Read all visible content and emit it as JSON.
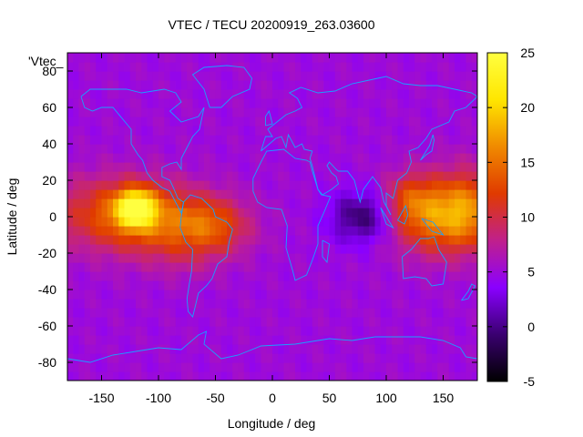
{
  "chart_data": {
    "type": "heatmap",
    "title": "VTEC / TECU 20200919_263.03600",
    "xlabel": "Longitude / deg",
    "ylabel": "Latitude / deg",
    "key_label": "'Vtec_",
    "xlim": [
      -180,
      180
    ],
    "ylim": [
      -90,
      90
    ],
    "xticks": [
      -150,
      -100,
      -50,
      0,
      50,
      100,
      150
    ],
    "yticks": [
      -80,
      -60,
      -40,
      -20,
      0,
      20,
      40,
      60,
      80
    ],
    "colorbar": {
      "range": [
        -5,
        25
      ],
      "ticks": [
        -5,
        0,
        5,
        10,
        15,
        20,
        25
      ],
      "palette": [
        "#000000",
        "#3a0070",
        "#8a00ff",
        "#c0208c",
        "#e03a00",
        "#f08a00",
        "#ffe600",
        "#ffff40"
      ]
    },
    "grid_resolution_deg": 5,
    "background_level": 5,
    "features": [
      {
        "lon": -120,
        "lat": 5,
        "value": 22,
        "sigma_lon": 12,
        "sigma_lat": 7
      },
      {
        "lon": -135,
        "lat": 2,
        "value": 14,
        "sigma_lon": 40,
        "sigma_lat": 14
      },
      {
        "lon": -80,
        "lat": -5,
        "value": 12,
        "sigma_lon": 35,
        "sigma_lat": 13
      },
      {
        "lon": -50,
        "lat": -5,
        "value": 10,
        "sigma_lon": 20,
        "sigma_lat": 10
      },
      {
        "lon": 145,
        "lat": 0,
        "value": 15,
        "sigma_lon": 30,
        "sigma_lat": 14
      },
      {
        "lon": 175,
        "lat": 5,
        "value": 13,
        "sigma_lon": 25,
        "sigma_lat": 15
      },
      {
        "lon": 120,
        "lat": 10,
        "value": 10,
        "sigma_lon": 15,
        "sigma_lat": 10
      },
      {
        "lon": -75,
        "lat": -25,
        "value": 6,
        "sigma_lon": 18,
        "sigma_lat": 8
      },
      {
        "lon": 80,
        "lat": 0,
        "value": -2,
        "sigma_lon": 20,
        "sigma_lat": 10
      }
    ],
    "coastlines": [
      [
        [
          -168,
          66
        ],
        [
          -160,
          70
        ],
        [
          -140,
          70
        ],
        [
          -128,
          70
        ],
        [
          -115,
          68
        ],
        [
          -95,
          70
        ],
        [
          -85,
          68
        ],
        [
          -80,
          63
        ],
        [
          -90,
          58
        ],
        [
          -80,
          52
        ],
        [
          -65,
          55
        ],
        [
          -60,
          60
        ],
        [
          -64,
          48
        ],
        [
          -70,
          44
        ],
        [
          -75,
          38
        ],
        [
          -80,
          32
        ],
        [
          -80,
          26
        ],
        [
          -84,
          30
        ],
        [
          -90,
          29
        ],
        [
          -97,
          27
        ],
        [
          -97,
          22
        ],
        [
          -90,
          20
        ],
        [
          -87,
          16
        ],
        [
          -83,
          10
        ],
        [
          -78,
          8
        ],
        [
          -80,
          2
        ],
        [
          -90,
          14
        ],
        [
          -97,
          16
        ],
        [
          -105,
          20
        ],
        [
          -110,
          24
        ],
        [
          -114,
          31
        ],
        [
          -118,
          34
        ],
        [
          -124,
          40
        ],
        [
          -124,
          48
        ],
        [
          -132,
          54
        ],
        [
          -140,
          60
        ],
        [
          -150,
          60
        ],
        [
          -158,
          58
        ],
        [
          -165,
          60
        ],
        [
          -168,
          66
        ]
      ],
      [
        [
          -78,
          8
        ],
        [
          -72,
          12
        ],
        [
          -62,
          10
        ],
        [
          -52,
          4
        ],
        [
          -50,
          0
        ],
        [
          -40,
          -3
        ],
        [
          -35,
          -7
        ],
        [
          -38,
          -14
        ],
        [
          -40,
          -22
        ],
        [
          -48,
          -26
        ],
        [
          -53,
          -34
        ],
        [
          -58,
          -38
        ],
        [
          -65,
          -42
        ],
        [
          -68,
          -50
        ],
        [
          -70,
          -55
        ],
        [
          -74,
          -52
        ],
        [
          -75,
          -45
        ],
        [
          -73,
          -37
        ],
        [
          -71,
          -30
        ],
        [
          -70,
          -18
        ],
        [
          -76,
          -14
        ],
        [
          -81,
          -6
        ],
        [
          -80,
          0
        ],
        [
          -78,
          8
        ]
      ],
      [
        [
          -55,
          60
        ],
        [
          -45,
          60
        ],
        [
          -35,
          66
        ],
        [
          -20,
          70
        ],
        [
          -18,
          76
        ],
        [
          -25,
          82
        ],
        [
          -40,
          83
        ],
        [
          -60,
          82
        ],
        [
          -70,
          78
        ],
        [
          -60,
          70
        ],
        [
          -55,
          60
        ]
      ],
      [
        [
          -10,
          36
        ],
        [
          -6,
          44
        ],
        [
          0,
          44
        ],
        [
          -4,
          48
        ],
        [
          2,
          51
        ],
        [
          8,
          54
        ],
        [
          12,
          56
        ],
        [
          20,
          58
        ],
        [
          26,
          60
        ],
        [
          22,
          65
        ],
        [
          15,
          68
        ],
        [
          25,
          71
        ],
        [
          40,
          68
        ],
        [
          55,
          69
        ],
        [
          70,
          73
        ],
        [
          85,
          75
        ],
        [
          100,
          77
        ],
        [
          115,
          73
        ],
        [
          130,
          72
        ],
        [
          145,
          72
        ],
        [
          160,
          70
        ],
        [
          175,
          68
        ],
        [
          180,
          66
        ],
        [
          170,
          60
        ],
        [
          160,
          58
        ],
        [
          155,
          52
        ],
        [
          140,
          48
        ],
        [
          135,
          43
        ],
        [
          128,
          38
        ],
        [
          120,
          36
        ],
        [
          122,
          30
        ],
        [
          118,
          24
        ],
        [
          110,
          20
        ],
        [
          106,
          10
        ],
        [
          100,
          13
        ],
        [
          100,
          6
        ],
        [
          104,
          1
        ],
        [
          98,
          8
        ],
        [
          95,
          16
        ],
        [
          88,
          22
        ],
        [
          80,
          15
        ],
        [
          77,
          8
        ],
        [
          72,
          20
        ],
        [
          66,
          25
        ],
        [
          58,
          25
        ],
        [
          56,
          26
        ],
        [
          50,
          30
        ],
        [
          48,
          28
        ],
        [
          52,
          24
        ],
        [
          56,
          22
        ],
        [
          58,
          18
        ],
        [
          52,
          15
        ],
        [
          44,
          12
        ],
        [
          40,
          15
        ],
        [
          35,
          28
        ],
        [
          33,
          32
        ],
        [
          35,
          36
        ],
        [
          28,
          37
        ],
        [
          26,
          40
        ],
        [
          20,
          38
        ],
        [
          14,
          45
        ],
        [
          12,
          38
        ],
        [
          8,
          44
        ],
        [
          3,
          43
        ],
        [
          -10,
          36
        ]
      ],
      [
        [
          -17,
          21
        ],
        [
          -10,
          30
        ],
        [
          -5,
          36
        ],
        [
          10,
          37
        ],
        [
          20,
          32
        ],
        [
          30,
          31
        ],
        [
          33,
          30
        ],
        [
          35,
          25
        ],
        [
          40,
          15
        ],
        [
          43,
          12
        ],
        [
          51,
          11
        ],
        [
          45,
          2
        ],
        [
          40,
          -5
        ],
        [
          40,
          -15
        ],
        [
          35,
          -24
        ],
        [
          30,
          -32
        ],
        [
          20,
          -35
        ],
        [
          18,
          -30
        ],
        [
          12,
          -17
        ],
        [
          13,
          -5
        ],
        [
          8,
          4
        ],
        [
          -5,
          5
        ],
        [
          -13,
          8
        ],
        [
          -17,
          14
        ],
        [
          -17,
          21
        ]
      ],
      [
        [
          44,
          -13
        ],
        [
          50,
          -15
        ],
        [
          48,
          -25
        ],
        [
          44,
          -22
        ],
        [
          44,
          -13
        ]
      ],
      [
        [
          114,
          -22
        ],
        [
          122,
          -18
        ],
        [
          130,
          -12
        ],
        [
          137,
          -12
        ],
        [
          142,
          -11
        ],
        [
          146,
          -18
        ],
        [
          153,
          -25
        ],
        [
          150,
          -37
        ],
        [
          140,
          -38
        ],
        [
          135,
          -34
        ],
        [
          125,
          -33
        ],
        [
          115,
          -34
        ],
        [
          114,
          -22
        ]
      ],
      [
        [
          95,
          5
        ],
        [
          100,
          0
        ],
        [
          106,
          -6
        ],
        [
          100,
          -4
        ],
        [
          95,
          5
        ]
      ],
      [
        [
          110,
          -2
        ],
        [
          117,
          6
        ],
        [
          119,
          1
        ],
        [
          116,
          -4
        ],
        [
          110,
          -2
        ]
      ],
      [
        [
          131,
          -1
        ],
        [
          141,
          -3
        ],
        [
          150,
          -10
        ],
        [
          140,
          -8
        ],
        [
          131,
          -1
        ]
      ],
      [
        [
          130,
          31
        ],
        [
          135,
          34
        ],
        [
          140,
          36
        ],
        [
          142,
          42
        ],
        [
          141,
          45
        ],
        [
          138,
          39
        ],
        [
          133,
          34
        ],
        [
          130,
          31
        ]
      ],
      [
        [
          -6,
          50
        ],
        [
          0,
          51
        ],
        [
          -2,
          56
        ],
        [
          -3,
          58
        ],
        [
          -6,
          55
        ],
        [
          -6,
          50
        ]
      ],
      [
        [
          -180,
          -78
        ],
        [
          -160,
          -80
        ],
        [
          -140,
          -76
        ],
        [
          -120,
          -74
        ],
        [
          -100,
          -72
        ],
        [
          -80,
          -73
        ],
        [
          -65,
          -65
        ],
        [
          -58,
          -63
        ],
        [
          -60,
          -70
        ],
        [
          -45,
          -78
        ],
        [
          -30,
          -76
        ],
        [
          -10,
          -71
        ],
        [
          20,
          -70
        ],
        [
          50,
          -67
        ],
        [
          70,
          -68
        ],
        [
          90,
          -66
        ],
        [
          110,
          -66
        ],
        [
          130,
          -66
        ],
        [
          150,
          -68
        ],
        [
          165,
          -72
        ],
        [
          170,
          -77
        ],
        [
          180,
          -78
        ]
      ],
      [
        [
          166,
          -46
        ],
        [
          172,
          -41
        ],
        [
          175,
          -37
        ],
        [
          178,
          -38
        ],
        [
          172,
          -45
        ],
        [
          166,
          -46
        ]
      ]
    ]
  }
}
